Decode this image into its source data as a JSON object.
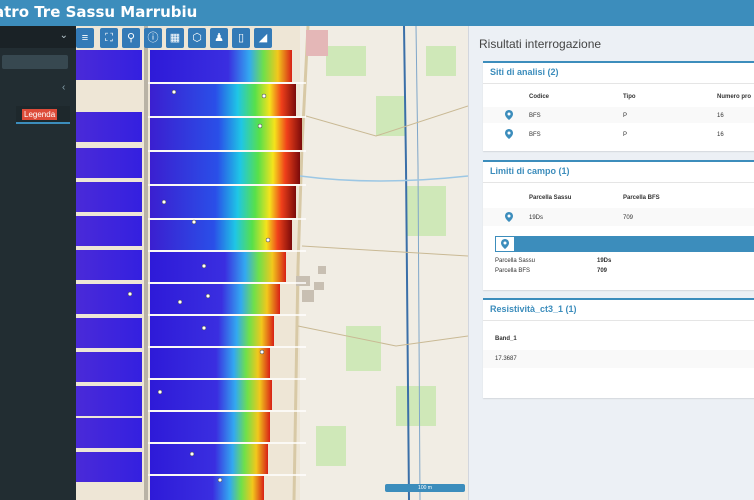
{
  "app": {
    "title": "atro Tre Sassu Marrubiu"
  },
  "sidebar": {
    "legend_label": "Legenda"
  },
  "map": {
    "scale_label": "100 m"
  },
  "panel": {
    "title": "Risultati interrogazione",
    "siti": {
      "title": "Siti di analisi (2)",
      "headers": [
        "Codice",
        "Tipo",
        "Numero pro"
      ],
      "rows": [
        [
          "BFS",
          "P",
          "16"
        ],
        [
          "BFS",
          "P",
          "16"
        ]
      ]
    },
    "limiti": {
      "title": "Limiti di campo (1)",
      "headers": [
        "Parcella Sassu",
        "Parcella BFS"
      ],
      "rows": [
        [
          "19Ds",
          "709"
        ]
      ],
      "detail": [
        {
          "label": "Parcella Sassu",
          "value": "19Ds"
        },
        {
          "label": "Parcella BFS",
          "value": "709"
        }
      ]
    },
    "resistivita": {
      "title": "Resistività_ct3_1 (1)",
      "headers": [
        "Band_1"
      ],
      "rows": [
        [
          "17.3687"
        ]
      ]
    }
  },
  "colors": {
    "header": "#3c8dbc",
    "sidebar": "#222d32",
    "legend_badge": "#dd4b39"
  }
}
